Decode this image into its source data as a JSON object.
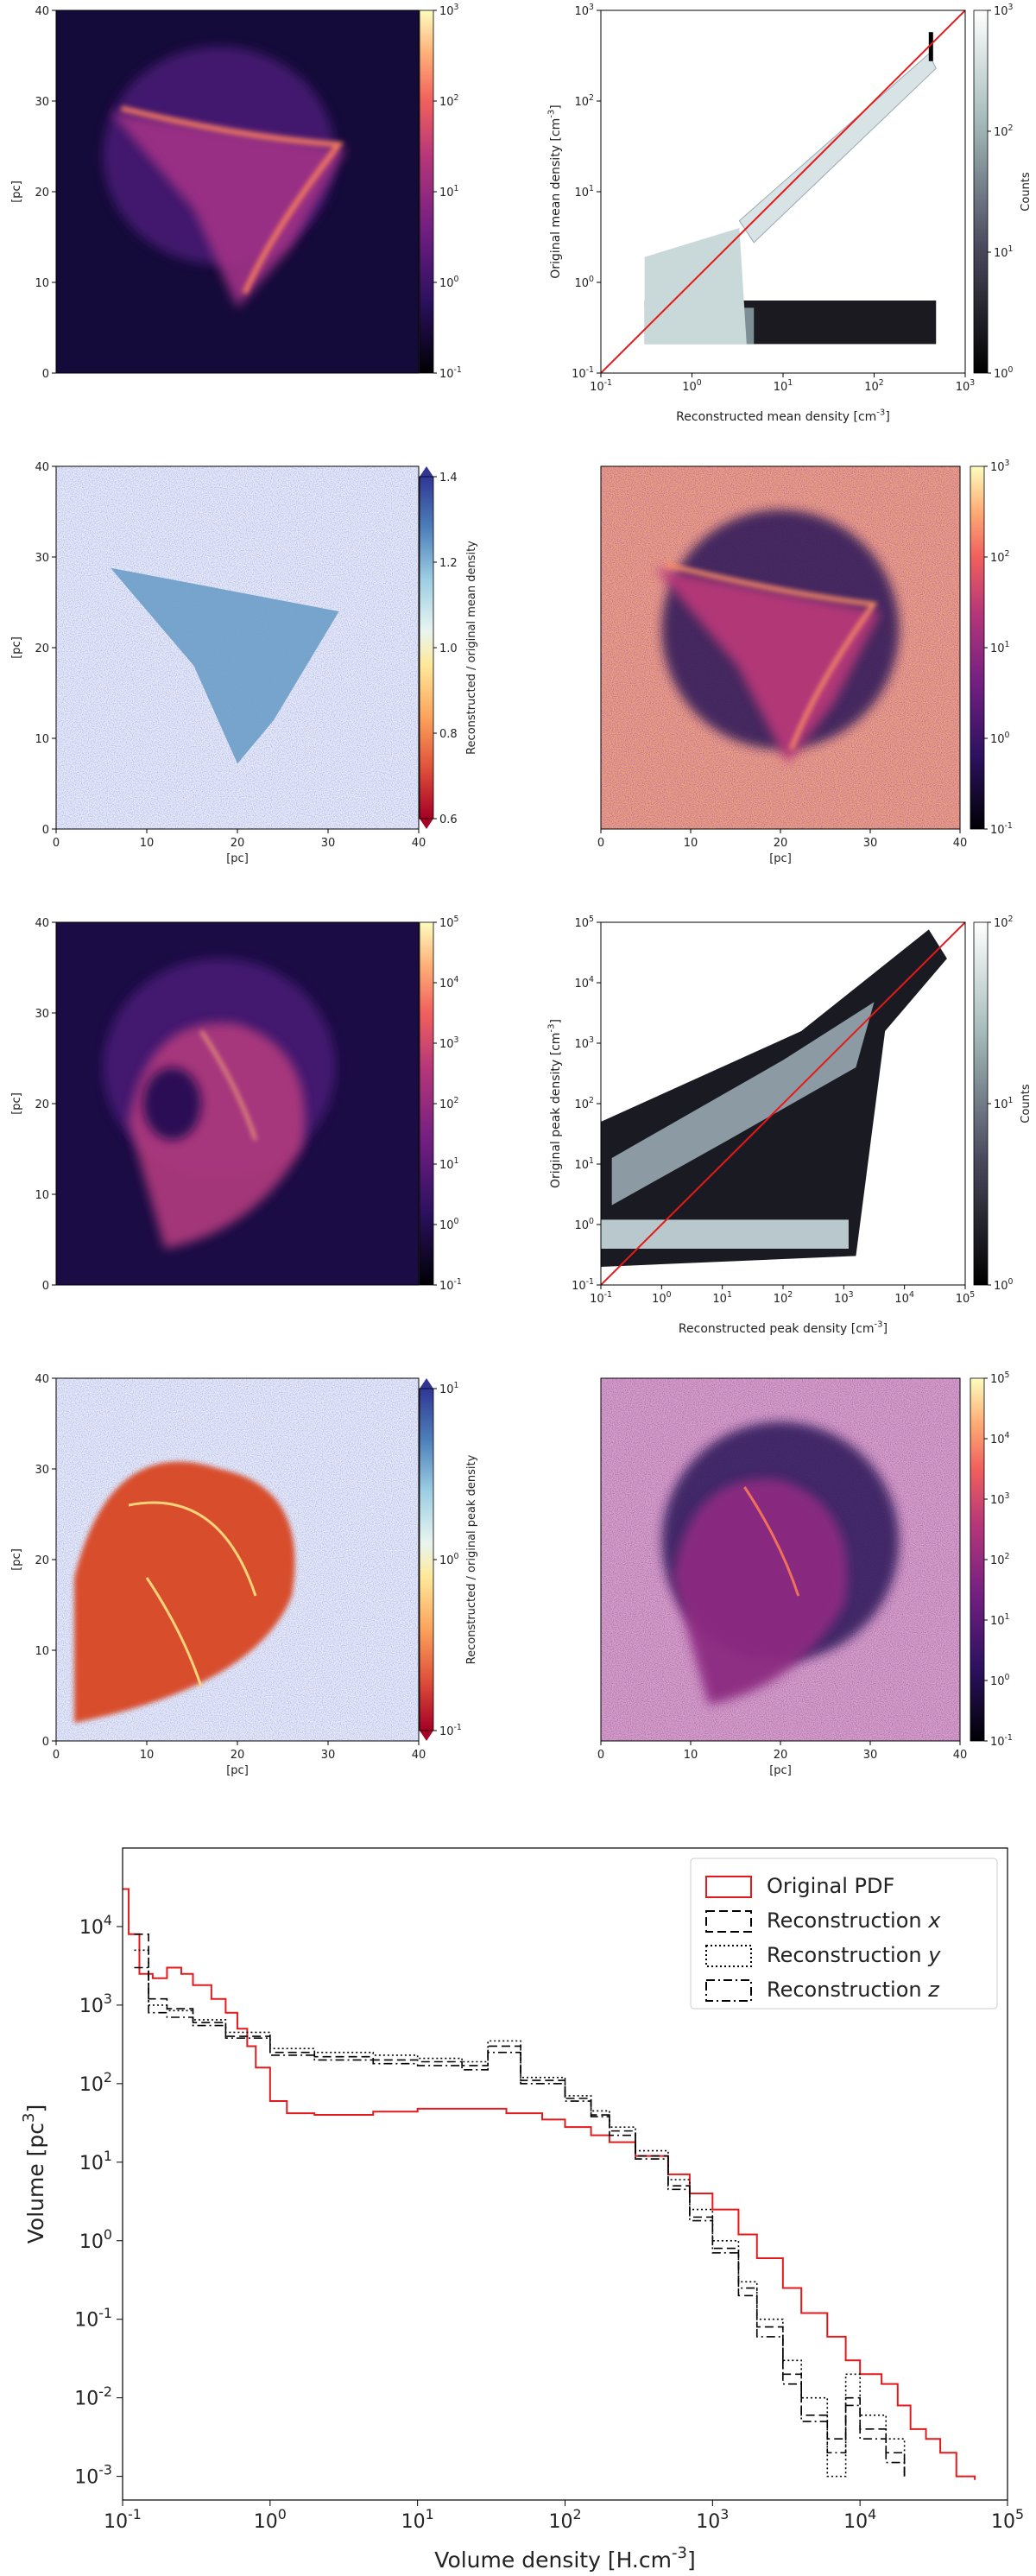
{
  "panels": {
    "p1": {
      "ylabel": "[pc]",
      "x_ticks": [],
      "y_ticks": [
        "0",
        "10",
        "20",
        "30",
        "40"
      ],
      "cbar_ticks": [
        "10^-1",
        "10^0",
        "10^1",
        "10^2",
        "10^3"
      ],
      "cbar_label": "",
      "cmap": "magma",
      "has_xaxis": false,
      "has_yaxis": true
    },
    "p2": {
      "xlabel": "Reconstructed mean density [cm^-3]",
      "ylabel": "Original mean density [cm^-3]",
      "x_ticks": [
        "10^-1",
        "10^0",
        "10^1",
        "10^2",
        "10^3"
      ],
      "y_ticks": [
        "10^-1",
        "10^0",
        "10^1",
        "10^2",
        "10^3"
      ],
      "cbar_ticks": [
        "10^0",
        "10^1",
        "10^2",
        "10^3"
      ],
      "cbar_label": "Counts"
    },
    "p3": {
      "xlabel": "[pc]",
      "ylabel": "[pc]",
      "x_ticks": [
        "0",
        "10",
        "20",
        "30",
        "40"
      ],
      "y_ticks": [
        "0",
        "10",
        "20",
        "30",
        "40"
      ],
      "cbar_ticks": [
        "0.6",
        "0.8",
        "1.0",
        "1.2",
        "1.4"
      ],
      "cbar_label": "Reconstructed / original mean density"
    },
    "p4": {
      "xlabel": "[pc]",
      "x_ticks": [
        "0",
        "10",
        "20",
        "30",
        "40"
      ],
      "cbar_ticks": [
        "10^-1",
        "10^0",
        "10^1",
        "10^2",
        "10^3"
      ]
    },
    "p5": {
      "ylabel": "[pc]",
      "y_ticks": [
        "0",
        "10",
        "20",
        "30",
        "40"
      ],
      "cbar_ticks": [
        "10^-1",
        "10^0",
        "10^1",
        "10^2",
        "10^3",
        "10^4",
        "10^5"
      ]
    },
    "p6": {
      "xlabel": "Reconstructed peak density [cm^-3]",
      "ylabel": "Original peak density [cm^-3]",
      "x_ticks": [
        "10^-1",
        "10^0",
        "10^1",
        "10^2",
        "10^3",
        "10^4",
        "10^5"
      ],
      "y_ticks": [
        "10^-1",
        "10^0",
        "10^1",
        "10^2",
        "10^3",
        "10^4",
        "10^5"
      ],
      "cbar_ticks": [
        "10^0",
        "10^1",
        "10^2"
      ],
      "cbar_label": "Counts"
    },
    "p7": {
      "xlabel": "[pc]",
      "ylabel": "[pc]",
      "x_ticks": [
        "0",
        "10",
        "20",
        "30",
        "40"
      ],
      "y_ticks": [
        "0",
        "10",
        "20",
        "30",
        "40"
      ],
      "cbar_ticks": [
        "10^-1",
        "10^0",
        "10^1"
      ],
      "cbar_label": "Reconstructed / original peak density"
    },
    "p8": {
      "xlabel": "[pc]",
      "x_ticks": [
        "0",
        "10",
        "20",
        "30",
        "40"
      ],
      "cbar_ticks": [
        "10^-1",
        "10^0",
        "10^1",
        "10^2",
        "10^3",
        "10^4",
        "10^5"
      ]
    }
  },
  "chart_data": [
    {
      "id": "mean-density-scatter",
      "type": "heatmap",
      "xlabel": "Reconstructed mean density [cm^-3]",
      "ylabel": "Original mean density [cm^-3]",
      "xlim": [
        0.03,
        1000
      ],
      "ylim": [
        0.03,
        1000
      ],
      "log_x": true,
      "log_y": true,
      "reference_line": "y = x",
      "reference_color": "#e31a1c",
      "colorbar": {
        "label": "Counts",
        "range": [
          1,
          1000
        ],
        "log": true
      }
    },
    {
      "id": "peak-density-scatter",
      "type": "heatmap",
      "xlabel": "Reconstructed peak density [cm^-3]",
      "ylabel": "Original peak density [cm^-3]",
      "xlim": [
        0.1,
        100000
      ],
      "ylim": [
        0.1,
        100000
      ],
      "log_x": true,
      "log_y": true,
      "reference_line": "y = x",
      "reference_color": "#e31a1c",
      "colorbar": {
        "label": "Counts",
        "range": [
          1,
          400
        ],
        "log": true
      }
    },
    {
      "id": "volume-pdf",
      "type": "line",
      "xlabel": "Volume density [H.cm^-3]",
      "ylabel": "Volume [pc^3]",
      "xlim": [
        0.1,
        100000
      ],
      "ylim": [
        0.0005,
        100000
      ],
      "log_x": true,
      "log_y": true,
      "x_ticks": [
        "10^-1",
        "10^0",
        "10^1",
        "10^2",
        "10^3",
        "10^4",
        "10^5"
      ],
      "y_ticks": [
        "10^-3",
        "10^-2",
        "10^-1",
        "10^0",
        "10^1",
        "10^2",
        "10^3",
        "10^4"
      ],
      "legend_position": "top-right",
      "series": [
        {
          "name": "Original PDF",
          "style": "solid",
          "color": "#e31a1c",
          "points": [
            [
              0.1,
              30000
            ],
            [
              0.11,
              8000
            ],
            [
              0.13,
              2500
            ],
            [
              0.16,
              2200
            ],
            [
              0.2,
              3000
            ],
            [
              0.25,
              2500
            ],
            [
              0.3,
              1800
            ],
            [
              0.4,
              1200
            ],
            [
              0.5,
              800
            ],
            [
              0.6,
              500
            ],
            [
              0.7,
              300
            ],
            [
              0.8,
              160
            ],
            [
              1.0,
              60
            ],
            [
              1.3,
              42
            ],
            [
              2,
              40
            ],
            [
              3,
              40
            ],
            [
              5,
              44
            ],
            [
              10,
              48
            ],
            [
              20,
              48
            ],
            [
              40,
              42
            ],
            [
              70,
              35
            ],
            [
              100,
              28
            ],
            [
              150,
              22
            ],
            [
              200,
              18
            ],
            [
              300,
              12
            ],
            [
              500,
              7
            ],
            [
              700,
              4
            ],
            [
              1000,
              2.5
            ],
            [
              1500,
              1.2
            ],
            [
              2000,
              0.6
            ],
            [
              3000,
              0.25
            ],
            [
              4000,
              0.12
            ],
            [
              6000,
              0.06
            ],
            [
              8000,
              0.03
            ],
            [
              10000,
              0.02
            ],
            [
              14000,
              0.015
            ],
            [
              18000,
              0.008
            ],
            [
              22000,
              0.004
            ],
            [
              28000,
              0.003
            ],
            [
              35000,
              0.002
            ],
            [
              45000,
              0.001
            ],
            [
              60000,
              0.0009
            ]
          ]
        },
        {
          "name": "Reconstruction x",
          "style": "dashed",
          "color": "#000000",
          "points": [
            [
              0.12,
              8000
            ],
            [
              0.15,
              1200
            ],
            [
              0.2,
              900
            ],
            [
              0.3,
              600
            ],
            [
              0.5,
              400
            ],
            [
              1,
              250
            ],
            [
              2,
              220
            ],
            [
              5,
              200
            ],
            [
              10,
              190
            ],
            [
              20,
              170
            ],
            [
              30,
              300
            ],
            [
              50,
              110
            ],
            [
              100,
              65
            ],
            [
              150,
              40
            ],
            [
              200,
              25
            ],
            [
              300,
              12
            ],
            [
              500,
              5
            ],
            [
              700,
              2
            ],
            [
              1000,
              0.8
            ],
            [
              1500,
              0.2
            ],
            [
              2000,
              0.08
            ],
            [
              3000,
              0.02
            ],
            [
              4000,
              0.006
            ],
            [
              6000,
              0.003
            ],
            [
              8000,
              0.01
            ],
            [
              10000,
              0.004
            ],
            [
              15000,
              0.002
            ],
            [
              20000,
              0.001
            ]
          ]
        },
        {
          "name": "Reconstruction y",
          "style": "dotted",
          "color": "#000000",
          "points": [
            [
              0.12,
              5000
            ],
            [
              0.15,
              1000
            ],
            [
              0.2,
              850
            ],
            [
              0.3,
              650
            ],
            [
              0.5,
              450
            ],
            [
              1,
              280
            ],
            [
              2,
              250
            ],
            [
              5,
              230
            ],
            [
              10,
              210
            ],
            [
              20,
              190
            ],
            [
              30,
              350
            ],
            [
              50,
              120
            ],
            [
              100,
              70
            ],
            [
              150,
              45
            ],
            [
              200,
              28
            ],
            [
              300,
              14
            ],
            [
              500,
              6
            ],
            [
              700,
              2.5
            ],
            [
              1000,
              1
            ],
            [
              1500,
              0.3
            ],
            [
              2000,
              0.1
            ],
            [
              3000,
              0.03
            ],
            [
              4000,
              0.01
            ],
            [
              6000,
              0.001
            ],
            [
              8000,
              0.02
            ],
            [
              10000,
              0.006
            ],
            [
              15000,
              0.003
            ],
            [
              20000,
              0.001
            ]
          ]
        },
        {
          "name": "Reconstruction z",
          "style": "dashdot",
          "color": "#000000",
          "points": [
            [
              0.12,
              3000
            ],
            [
              0.15,
              800
            ],
            [
              0.2,
              700
            ],
            [
              0.3,
              550
            ],
            [
              0.5,
              380
            ],
            [
              1,
              230
            ],
            [
              2,
              200
            ],
            [
              5,
              180
            ],
            [
              10,
              170
            ],
            [
              20,
              150
            ],
            [
              30,
              250
            ],
            [
              50,
              100
            ],
            [
              100,
              60
            ],
            [
              150,
              38
            ],
            [
              200,
              22
            ],
            [
              300,
              11
            ],
            [
              500,
              4.5
            ],
            [
              700,
              1.8
            ],
            [
              1000,
              0.7
            ],
            [
              1500,
              0.25
            ],
            [
              2000,
              0.06
            ],
            [
              3000,
              0.015
            ],
            [
              4000,
              0.005
            ],
            [
              6000,
              0.002
            ],
            [
              8000,
              0.008
            ],
            [
              10000,
              0.003
            ],
            [
              15000,
              0.0015
            ],
            [
              20000,
              0.001
            ]
          ]
        }
      ]
    }
  ]
}
